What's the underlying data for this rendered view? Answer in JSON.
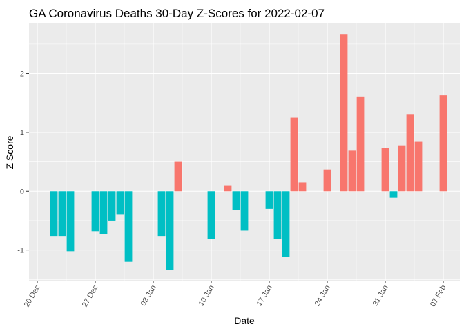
{
  "chart_data": {
    "type": "bar",
    "title": "GA Coronavirus Deaths 30-Day Z-Scores for 2022-02-07",
    "xlabel": "Date",
    "ylabel": "Z Score",
    "x_tick_labels": [
      "20 Dec",
      "27 Dec",
      "03 Jan",
      "10 Jan",
      "17 Jan",
      "24 Jan",
      "31 Jan",
      "07 Feb"
    ],
    "y_ticks": [
      -1,
      0,
      1,
      2
    ],
    "y_tick_labels": [
      "-1",
      "0",
      "1",
      "2"
    ],
    "ylim": [
      -1.52,
      2.85
    ],
    "xlim": [
      "2021-12-19",
      "2022-02-09"
    ],
    "grid": true,
    "legend": "none",
    "colors": {
      "positive": "#F8766D",
      "negative": "#00BFC4",
      "panel": "#EBEBEB",
      "grid": "#FFFFFF"
    },
    "points": [
      {
        "date": "2021-12-22",
        "value": -0.76
      },
      {
        "date": "2021-12-23",
        "value": -0.76
      },
      {
        "date": "2021-12-24",
        "value": -1.02
      },
      {
        "date": "2021-12-27",
        "value": -0.68
      },
      {
        "date": "2021-12-28",
        "value": -0.73
      },
      {
        "date": "2021-12-29",
        "value": -0.5
      },
      {
        "date": "2021-12-30",
        "value": -0.4
      },
      {
        "date": "2021-12-31",
        "value": -1.2
      },
      {
        "date": "2022-01-04",
        "value": -0.76
      },
      {
        "date": "2022-01-05",
        "value": -1.34
      },
      {
        "date": "2022-01-06",
        "value": 0.5
      },
      {
        "date": "2022-01-10",
        "value": -0.81
      },
      {
        "date": "2022-01-12",
        "value": 0.09
      },
      {
        "date": "2022-01-13",
        "value": -0.32
      },
      {
        "date": "2022-01-14",
        "value": -0.67
      },
      {
        "date": "2022-01-17",
        "value": -0.3
      },
      {
        "date": "2022-01-18",
        "value": -0.81
      },
      {
        "date": "2022-01-19",
        "value": -1.11
      },
      {
        "date": "2022-01-20",
        "value": 1.25
      },
      {
        "date": "2022-01-21",
        "value": 0.15
      },
      {
        "date": "2022-01-24",
        "value": 0.37
      },
      {
        "date": "2022-01-26",
        "value": 2.66
      },
      {
        "date": "2022-01-27",
        "value": 0.69
      },
      {
        "date": "2022-01-28",
        "value": 1.61
      },
      {
        "date": "2022-01-31",
        "value": 0.73
      },
      {
        "date": "2022-02-01",
        "value": -0.11
      },
      {
        "date": "2022-02-02",
        "value": 0.78
      },
      {
        "date": "2022-02-03",
        "value": 1.3
      },
      {
        "date": "2022-02-04",
        "value": 0.84
      },
      {
        "date": "2022-02-07",
        "value": 1.63
      }
    ]
  }
}
